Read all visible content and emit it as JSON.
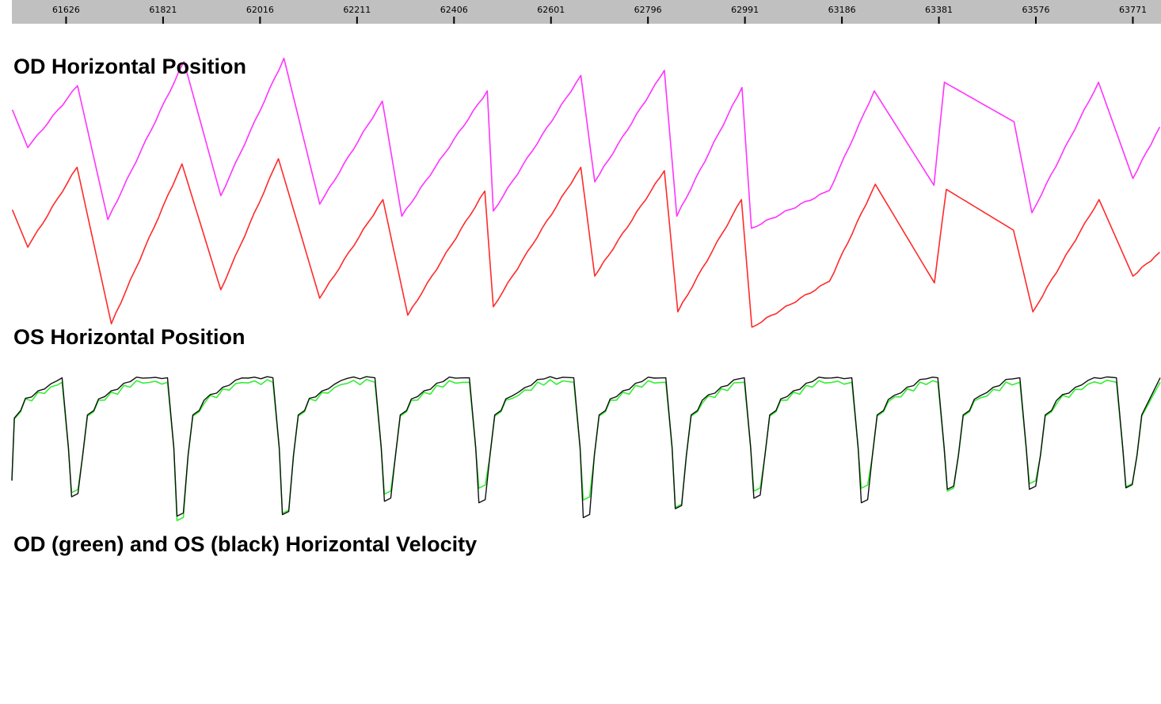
{
  "timeline": {
    "ticks": [
      "61626",
      "61821",
      "62016",
      "62211",
      "62406",
      "62601",
      "62796",
      "62991",
      "63186",
      "63381",
      "63576",
      "63771"
    ]
  },
  "labels": {
    "od_position": "OD Horizontal Position",
    "os_position": "OS Horizontal Position",
    "velocity": "OD (green) and OS (black) Horizontal Velocity"
  },
  "colors": {
    "ruler_bg": "#c0c0c0",
    "od_position": "#ff33ff",
    "os_position": "#ff2a2a",
    "od_velocity": "#33ee33",
    "os_velocity": "#111111"
  },
  "chart_data": {
    "type": "line",
    "x_range": [
      61517,
      63826
    ],
    "series": [
      {
        "name": "OD Horizontal Position",
        "color": "#ff33ff",
        "minima": [
          [
            61518,
            0.72
          ],
          [
            61549,
            0.5
          ],
          [
            61710,
            0.08
          ],
          [
            61937,
            0.22
          ],
          [
            62136,
            0.17
          ],
          [
            62301,
            0.1
          ],
          [
            62485,
            0.13
          ],
          [
            62689,
            0.3
          ],
          [
            62854,
            0.1
          ],
          [
            63004,
            0.03
          ],
          [
            63161,
            0.25
          ],
          [
            63371,
            0.28
          ],
          [
            63568,
            0.12
          ],
          [
            63771,
            0.32
          ]
        ],
        "peaks": [
          [
            61649,
            0.86
          ],
          [
            61863,
            1.0
          ],
          [
            62064,
            1.02
          ],
          [
            62262,
            0.77
          ],
          [
            62473,
            0.83
          ],
          [
            62661,
            0.92
          ],
          [
            62829,
            0.95
          ],
          [
            62985,
            0.85
          ],
          [
            63251,
            0.83
          ],
          [
            63392,
            0.88
          ],
          [
            63532,
            0.65
          ],
          [
            63702,
            0.88
          ],
          [
            63825,
            0.62
          ]
        ],
        "pattern": "sawtooth: slow ramp up, fast return"
      },
      {
        "name": "OS Horizontal Position",
        "color": "#ff2a2a",
        "minima": [
          [
            61518,
            0.72
          ],
          [
            61549,
            0.5
          ],
          [
            61717,
            0.05
          ],
          [
            61937,
            0.25
          ],
          [
            62136,
            0.2
          ],
          [
            62313,
            0.1
          ],
          [
            62485,
            0.15
          ],
          [
            62689,
            0.33
          ],
          [
            62856,
            0.12
          ],
          [
            63005,
            0.03
          ],
          [
            63161,
            0.3
          ],
          [
            63372,
            0.29
          ],
          [
            63570,
            0.12
          ],
          [
            63771,
            0.33
          ]
        ],
        "peaks": [
          [
            61648,
            0.97
          ],
          [
            61859,
            0.99
          ],
          [
            62053,
            1.02
          ],
          [
            62263,
            0.78
          ],
          [
            62468,
            0.83
          ],
          [
            62661,
            0.97
          ],
          [
            62829,
            0.95
          ],
          [
            62984,
            0.78
          ],
          [
            63253,
            0.87
          ],
          [
            63396,
            0.84
          ],
          [
            63531,
            0.6
          ],
          [
            63703,
            0.78
          ],
          [
            63825,
            0.47
          ]
        ],
        "pattern": "sawtooth: slow ramp up, fast return"
      },
      {
        "name": "OD (green) Horizontal Velocity",
        "color": "#33ee33",
        "events": [
          [
            61637,
            0.2
          ],
          [
            61849,
            0.01
          ],
          [
            62061,
            0.06
          ],
          [
            62266,
            0.19
          ],
          [
            62456,
            0.23
          ],
          [
            62666,
            0.15
          ],
          [
            62851,
            0.1
          ],
          [
            63009,
            0.21
          ],
          [
            63225,
            0.23
          ],
          [
            63398,
            0.21
          ],
          [
            63563,
            0.26
          ],
          [
            63757,
            0.24
          ]
        ],
        "plateau": 0.95,
        "pattern": "plateau with brief negative dips"
      },
      {
        "name": "OS (black) Horizontal Velocity",
        "color": "#111111",
        "events": [
          [
            61637,
            0.17
          ],
          [
            61849,
            0.04
          ],
          [
            62061,
            0.05
          ],
          [
            62266,
            0.14
          ],
          [
            62456,
            0.13
          ],
          [
            62666,
            0.03
          ],
          [
            62851,
            0.09
          ],
          [
            63009,
            0.16
          ],
          [
            63225,
            0.13
          ],
          [
            63398,
            0.22
          ],
          [
            63563,
            0.22
          ],
          [
            63757,
            0.23
          ]
        ],
        "plateau": 0.97,
        "pattern": "plateau with brief negative dips"
      }
    ]
  }
}
